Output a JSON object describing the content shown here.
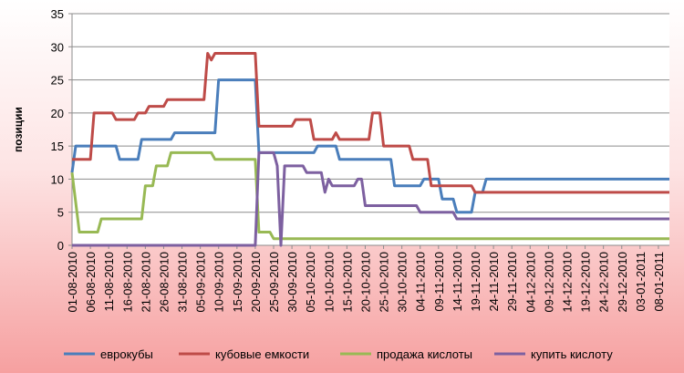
{
  "chart_data": {
    "type": "line",
    "ylabel": "позиции",
    "ylim": [
      0,
      35
    ],
    "yticks": [
      0,
      5,
      10,
      15,
      20,
      25,
      30,
      35
    ],
    "x_start": "01-08-2010",
    "x_end": "11-01-2011",
    "xtick_labels": [
      "01-08-2010",
      "06-08-2010",
      "11-08-2010",
      "16-08-2010",
      "21-08-2010",
      "26-08-2010",
      "31-08-2010",
      "05-09-2010",
      "10-09-2010",
      "15-09-2010",
      "20-09-2010",
      "25-09-2010",
      "30-09-2010",
      "05-10-2010",
      "10-10-2010",
      "15-10-2010",
      "20-10-2010",
      "25-10-2010",
      "30-10-2010",
      "04-11-2010",
      "09-11-2010",
      "14-11-2010",
      "19-11-2010",
      "24-11-2010",
      "29-11-2010",
      "04-12-2010",
      "09-12-2010",
      "14-12-2010",
      "19-12-2010",
      "24-12-2010",
      "29-12-2010",
      "03-01-2011",
      "08-01-2011"
    ],
    "legend_position": "bottom",
    "grid": true,
    "series": [
      {
        "name": "еврокубы",
        "color": "#4a7ebb",
        "points": [
          [
            "01-08-2010",
            11
          ],
          [
            "02-08-2010",
            15
          ],
          [
            "13-08-2010",
            15
          ],
          [
            "14-08-2010",
            13
          ],
          [
            "19-08-2010",
            13
          ],
          [
            "20-08-2010",
            16
          ],
          [
            "28-08-2010",
            16
          ],
          [
            "29-08-2010",
            17
          ],
          [
            "09-09-2010",
            17
          ],
          [
            "10-09-2010",
            25
          ],
          [
            "20-09-2010",
            25
          ],
          [
            "21-09-2010",
            14
          ],
          [
            "06-10-2010",
            14
          ],
          [
            "07-10-2010",
            15
          ],
          [
            "12-10-2010",
            15
          ],
          [
            "13-10-2010",
            13
          ],
          [
            "27-10-2010",
            13
          ],
          [
            "28-10-2010",
            9
          ],
          [
            "04-11-2010",
            9
          ],
          [
            "05-11-2010",
            10
          ],
          [
            "09-11-2010",
            10
          ],
          [
            "10-11-2010",
            7
          ],
          [
            "13-11-2010",
            7
          ],
          [
            "14-11-2010",
            5
          ],
          [
            "18-11-2010",
            5
          ],
          [
            "19-11-2010",
            8
          ],
          [
            "21-11-2010",
            8
          ],
          [
            "22-11-2010",
            10
          ],
          [
            "11-01-2011",
            10
          ]
        ]
      },
      {
        "name": "кубовые емкости",
        "color": "#be4b48",
        "points": [
          [
            "01-08-2010",
            13
          ],
          [
            "06-08-2010",
            13
          ],
          [
            "07-08-2010",
            20
          ],
          [
            "12-08-2010",
            20
          ],
          [
            "13-08-2010",
            19
          ],
          [
            "18-08-2010",
            19
          ],
          [
            "19-08-2010",
            20
          ],
          [
            "21-08-2010",
            20
          ],
          [
            "22-08-2010",
            21
          ],
          [
            "26-08-2010",
            21
          ],
          [
            "27-08-2010",
            22
          ],
          [
            "06-09-2010",
            22
          ],
          [
            "07-09-2010",
            29
          ],
          [
            "08-09-2010",
            28
          ],
          [
            "09-09-2010",
            29
          ],
          [
            "20-09-2010",
            29
          ],
          [
            "21-09-2010",
            18
          ],
          [
            "30-09-2010",
            18
          ],
          [
            "01-10-2010",
            19
          ],
          [
            "05-10-2010",
            19
          ],
          [
            "06-10-2010",
            16
          ],
          [
            "11-10-2010",
            16
          ],
          [
            "12-10-2010",
            17
          ],
          [
            "13-10-2010",
            16
          ],
          [
            "21-10-2010",
            16
          ],
          [
            "22-10-2010",
            20
          ],
          [
            "24-10-2010",
            20
          ],
          [
            "25-10-2010",
            15
          ],
          [
            "01-11-2010",
            15
          ],
          [
            "02-11-2010",
            13
          ],
          [
            "06-11-2010",
            13
          ],
          [
            "07-11-2010",
            9
          ],
          [
            "18-11-2010",
            9
          ],
          [
            "19-11-2010",
            8
          ],
          [
            "11-01-2011",
            8
          ]
        ]
      },
      {
        "name": "продажа кислоты",
        "color": "#98b954",
        "points": [
          [
            "01-08-2010",
            11
          ],
          [
            "03-08-2010",
            2
          ],
          [
            "08-08-2010",
            2
          ],
          [
            "09-08-2010",
            4
          ],
          [
            "20-08-2010",
            4
          ],
          [
            "21-08-2010",
            9
          ],
          [
            "23-08-2010",
            9
          ],
          [
            "24-08-2010",
            12
          ],
          [
            "27-08-2010",
            12
          ],
          [
            "28-08-2010",
            14
          ],
          [
            "08-09-2010",
            14
          ],
          [
            "09-09-2010",
            13
          ],
          [
            "20-09-2010",
            13
          ],
          [
            "21-09-2010",
            2
          ],
          [
            "24-09-2010",
            2
          ],
          [
            "25-09-2010",
            1
          ],
          [
            "11-01-2011",
            1
          ]
        ]
      },
      {
        "name": "купить кислоту",
        "color": "#7d60a0",
        "points": [
          [
            "01-08-2010",
            0
          ],
          [
            "20-09-2010",
            0
          ],
          [
            "21-09-2010",
            14
          ],
          [
            "25-09-2010",
            14
          ],
          [
            "26-09-2010",
            12
          ],
          [
            "27-09-2010",
            0
          ],
          [
            "28-09-2010",
            12
          ],
          [
            "03-10-2010",
            12
          ],
          [
            "04-10-2010",
            11
          ],
          [
            "08-10-2010",
            11
          ],
          [
            "09-10-2010",
            8
          ],
          [
            "10-10-2010",
            10
          ],
          [
            "11-10-2010",
            9
          ],
          [
            "17-10-2010",
            9
          ],
          [
            "18-10-2010",
            10
          ],
          [
            "19-10-2010",
            10
          ],
          [
            "20-10-2010",
            6
          ],
          [
            "01-11-2010",
            6
          ],
          [
            "03-11-2010",
            6
          ],
          [
            "04-11-2010",
            5
          ],
          [
            "12-11-2010",
            5
          ],
          [
            "13-11-2010",
            5
          ],
          [
            "14-11-2010",
            4
          ],
          [
            "11-01-2011",
            4
          ]
        ]
      }
    ]
  }
}
